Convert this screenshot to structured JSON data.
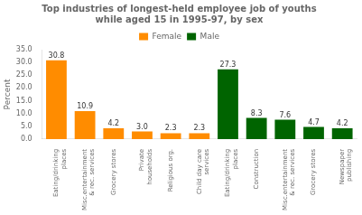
{
  "chart_data": {
    "type": "bar",
    "title": "Top industries of longest-held employee job of youths\nwhile aged 15 in 1995-97, by sex",
    "ylabel": "Percent",
    "categories": [
      "Eating/drinking\nplaces",
      "Misc.entertainment\n& rec. services",
      "Grocery stores",
      "Private\nhouseholds",
      "Religious org.",
      "Child day care\nservices",
      "Eating/drinking\nplaces",
      "Construction",
      "Misc.entertainment\n& rec. services",
      "Grocery stores",
      "Newspaper\npublishing"
    ],
    "series": [
      {
        "name": "Female",
        "color": "#FF8C00",
        "values": [
          30.8,
          10.9,
          4.2,
          3.0,
          2.3,
          2.3,
          null,
          null,
          null,
          null,
          null
        ],
        "value_labels": [
          "30.8",
          "10.9",
          "4.2",
          "3.0",
          "2.3",
          "2.3",
          null,
          null,
          null,
          null,
          null
        ]
      },
      {
        "name": "Male",
        "color": "#006400",
        "values": [
          null,
          null,
          null,
          null,
          null,
          null,
          27.3,
          8.3,
          7.6,
          4.7,
          4.2
        ],
        "value_labels": [
          null,
          null,
          null,
          null,
          null,
          null,
          "27.3",
          "8.3",
          "7.6",
          "4.7",
          "4.2"
        ]
      }
    ],
    "ylim": [
      0,
      35
    ],
    "yticks": [
      {
        "value": 0,
        "label": "0.0"
      },
      {
        "value": 5,
        "label": "5.0"
      },
      {
        "value": 10,
        "label": "10.0"
      },
      {
        "value": 15,
        "label": "15.0"
      },
      {
        "value": 20,
        "label": "20.0"
      },
      {
        "value": 25,
        "label": "25.0"
      },
      {
        "value": 30,
        "label": "30.0"
      },
      {
        "value": 35,
        "label": "35.0"
      }
    ],
    "grid": false,
    "legend": "top",
    "data_labels": true
  }
}
